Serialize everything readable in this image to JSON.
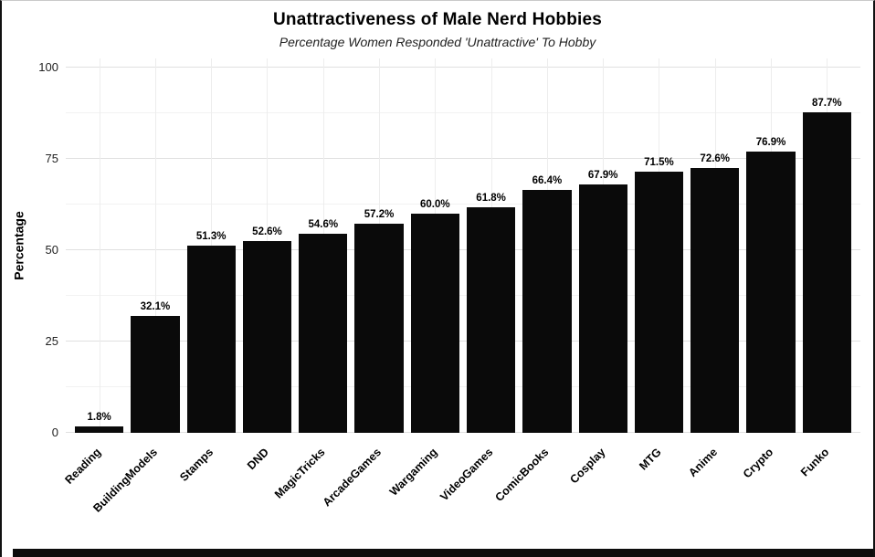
{
  "chart_data": {
    "type": "bar",
    "title": "Unattractiveness of Male Nerd Hobbies",
    "subtitle": "Percentage Women Responded 'Unattractive' To Hobby",
    "ylabel": "Percentage",
    "xlabel": "",
    "ylim": [
      0,
      100
    ],
    "yticks": [
      0,
      25,
      50,
      75,
      100
    ],
    "grid": true,
    "legend_position": "none",
    "bar_color": "#0a0a0a",
    "categories": [
      "Reading",
      "BuildingModels",
      "Stamps",
      "DND",
      "MagicTricks",
      "ArcadeGames",
      "Wargaming",
      "VideoGames",
      "ComicBooks",
      "Cosplay",
      "MTG",
      "Anime",
      "Crypto",
      "Funko"
    ],
    "values": [
      1.8,
      32.1,
      51.3,
      52.6,
      54.6,
      57.2,
      60.0,
      61.8,
      66.4,
      67.9,
      71.5,
      72.6,
      76.9,
      87.7
    ],
    "value_labels": [
      "1.8%",
      "32.1%",
      "51.3%",
      "52.6%",
      "54.6%",
      "57.2%",
      "60.0%",
      "61.8%",
      "66.4%",
      "67.9%",
      "71.5%",
      "72.6%",
      "76.9%",
      "87.7%"
    ]
  }
}
